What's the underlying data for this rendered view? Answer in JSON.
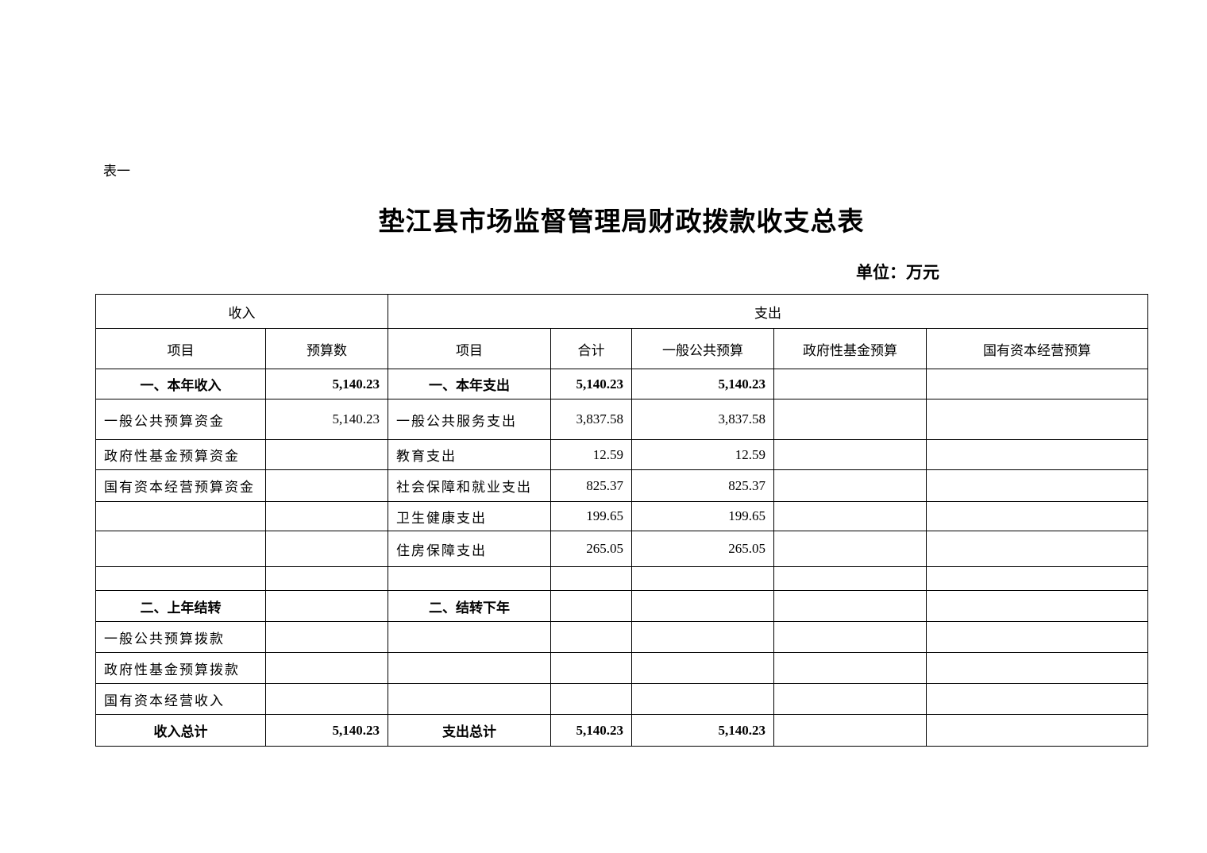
{
  "doc_label": "表一",
  "title": "垫江县市场监督管理局财政拨款收支总表",
  "unit": "单位：万元",
  "table": {
    "group_headers": {
      "income": "收入",
      "expense": "支出"
    },
    "columns": [
      "项目",
      "预算数",
      "项目",
      "合计",
      "一般公共预算",
      "政府性基金预算",
      "国有资本经营预算"
    ],
    "rows": [
      {
        "cells": [
          "一、本年收入",
          "5,140.23",
          "一、本年支出",
          "5,140.23",
          "5,140.23",
          "",
          ""
        ],
        "bold": true
      },
      {
        "cells": [
          "一般公共预算资金",
          "5,140.23",
          "一般公共服务支出",
          "3,837.58",
          "3,837.58",
          "",
          ""
        ],
        "bold": false
      },
      {
        "cells": [
          "政府性基金预算资金",
          "",
          "教育支出",
          "12.59",
          "12.59",
          "",
          ""
        ],
        "bold": false
      },
      {
        "cells": [
          "国有资本经营预算资金",
          "",
          "社会保障和就业支出",
          "825.37",
          "825.37",
          "",
          ""
        ],
        "bold": false
      },
      {
        "cells": [
          "",
          "",
          "卫生健康支出",
          "199.65",
          "199.65",
          "",
          ""
        ],
        "bold": false
      },
      {
        "cells": [
          "",
          "",
          "住房保障支出",
          "265.05",
          "265.05",
          "",
          ""
        ],
        "bold": false
      },
      {
        "cells": [
          "",
          "",
          "",
          "",
          "",
          "",
          ""
        ],
        "bold": false
      },
      {
        "cells": [
          "二、上年结转",
          "",
          "二、结转下年",
          "",
          "",
          "",
          ""
        ],
        "bold": true
      },
      {
        "cells": [
          "一般公共预算拨款",
          "",
          "",
          "",
          "",
          "",
          ""
        ],
        "bold": false
      },
      {
        "cells": [
          "政府性基金预算拨款",
          "",
          "",
          "",
          "",
          "",
          ""
        ],
        "bold": false
      },
      {
        "cells": [
          "国有资本经营收入",
          "",
          "",
          "",
          "",
          "",
          ""
        ],
        "bold": false
      },
      {
        "cells": [
          "收入总计",
          "5,140.23",
          "支出总计",
          "5,140.23",
          "5,140.23",
          "",
          ""
        ],
        "bold": true
      }
    ]
  }
}
